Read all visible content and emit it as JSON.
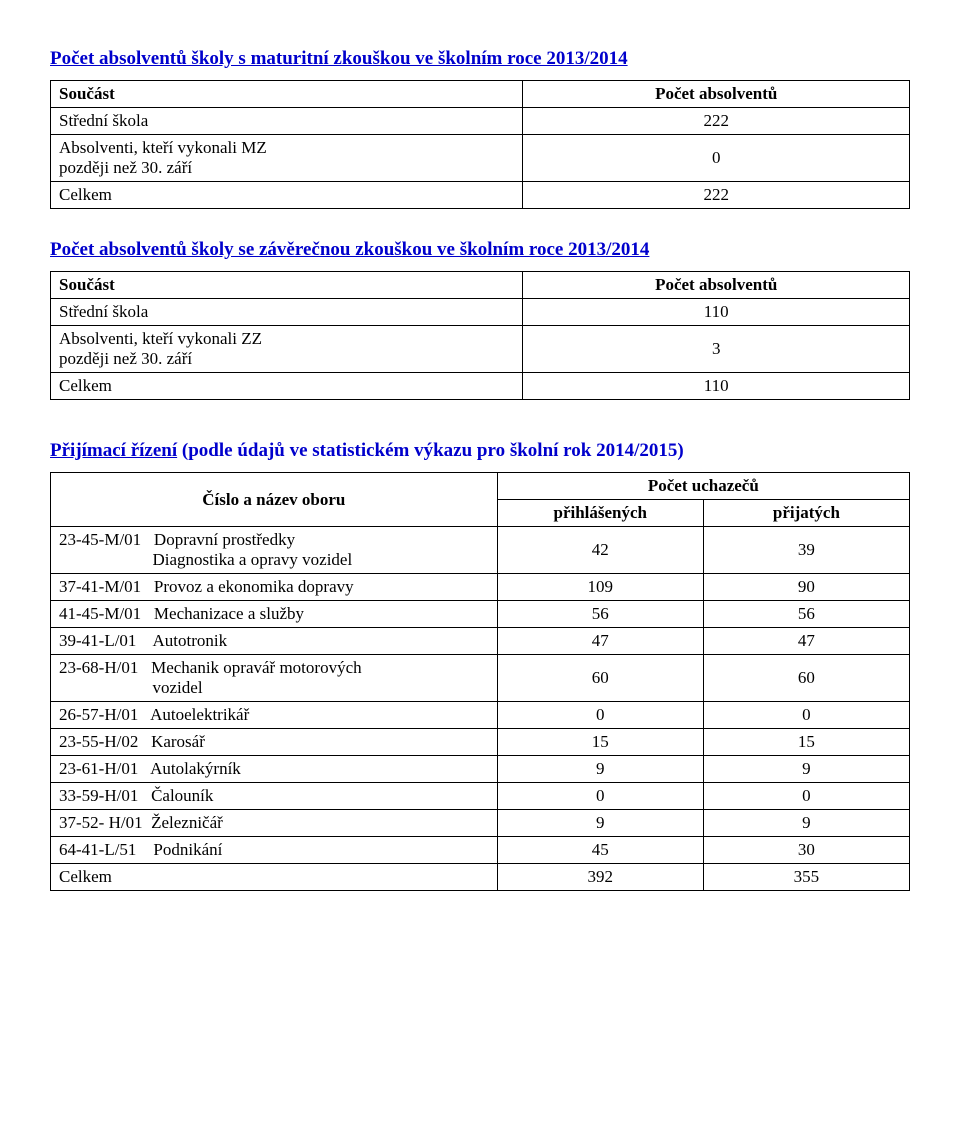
{
  "table1": {
    "title": "Počet absolventů školy s maturitní zkouškou ve školním roce 2013/2014",
    "header_left": "Součást",
    "header_right": "Počet absolventů",
    "rows": [
      {
        "label": "Střední škola",
        "value": "222"
      },
      {
        "label": "Absolventi, kteří vykonali MZ\npozději než 30. září",
        "value": "0"
      },
      {
        "label": "Celkem",
        "value": "222"
      }
    ]
  },
  "table2": {
    "title": "Počet absolventů školy se závěrečnou zkouškou  ve školním roce 2013/2014",
    "header_left": "Součást",
    "header_right": "Počet absolventů",
    "rows": [
      {
        "label": "Střední škola",
        "value": "110"
      },
      {
        "label": "Absolventi, kteří vykonali ZZ\npozději než 30. září",
        "value": "3"
      },
      {
        "label": "Celkem",
        "value": "110"
      }
    ]
  },
  "table3": {
    "title_underlined": "Přijímací řízení",
    "title_rest": "  (podle údajů ve statistickém výkazu pro školní rok 2014/2015)",
    "col1": "Číslo a název oboru",
    "col2_top": "Počet uchazečů",
    "col2a": "přihlášených",
    "col2b": "přijatých",
    "rows": [
      {
        "label": "23-45-M/01   Dopravní prostředky\n                      Diagnostika a opravy vozidel",
        "a": "42",
        "b": "39"
      },
      {
        "label": "37-41-M/01   Provoz a ekonomika dopravy",
        "a": "109",
        "b": "90"
      },
      {
        "label": "41-45-M/01   Mechanizace a služby",
        "a": "56",
        "b": "56"
      },
      {
        "label": "39-41-L/01    Autotronik",
        "a": "47",
        "b": "47"
      },
      {
        "label": "23-68-H/01   Mechanik opravář motorových\n                      vozidel",
        "a": "60",
        "b": "60"
      },
      {
        "label": "26-57-H/01   Autoelektrikář",
        "a": "0",
        "b": "0"
      },
      {
        "label": "23-55-H/02   Karosář",
        "a": "15",
        "b": "15"
      },
      {
        "label": "23-61-H/01   Autolakýrník",
        "a": "9",
        "b": "9"
      },
      {
        "label": "33-59-H/01   Čalouník",
        "a": "0",
        "b": "0"
      },
      {
        "label": "37-52- H/01  Železničář",
        "a": "9",
        "b": "9"
      },
      {
        "label": "64-41-L/51    Podnikání",
        "a": "45",
        "b": "30"
      },
      {
        "label": "Celkem",
        "a": "392",
        "b": "355"
      }
    ]
  }
}
